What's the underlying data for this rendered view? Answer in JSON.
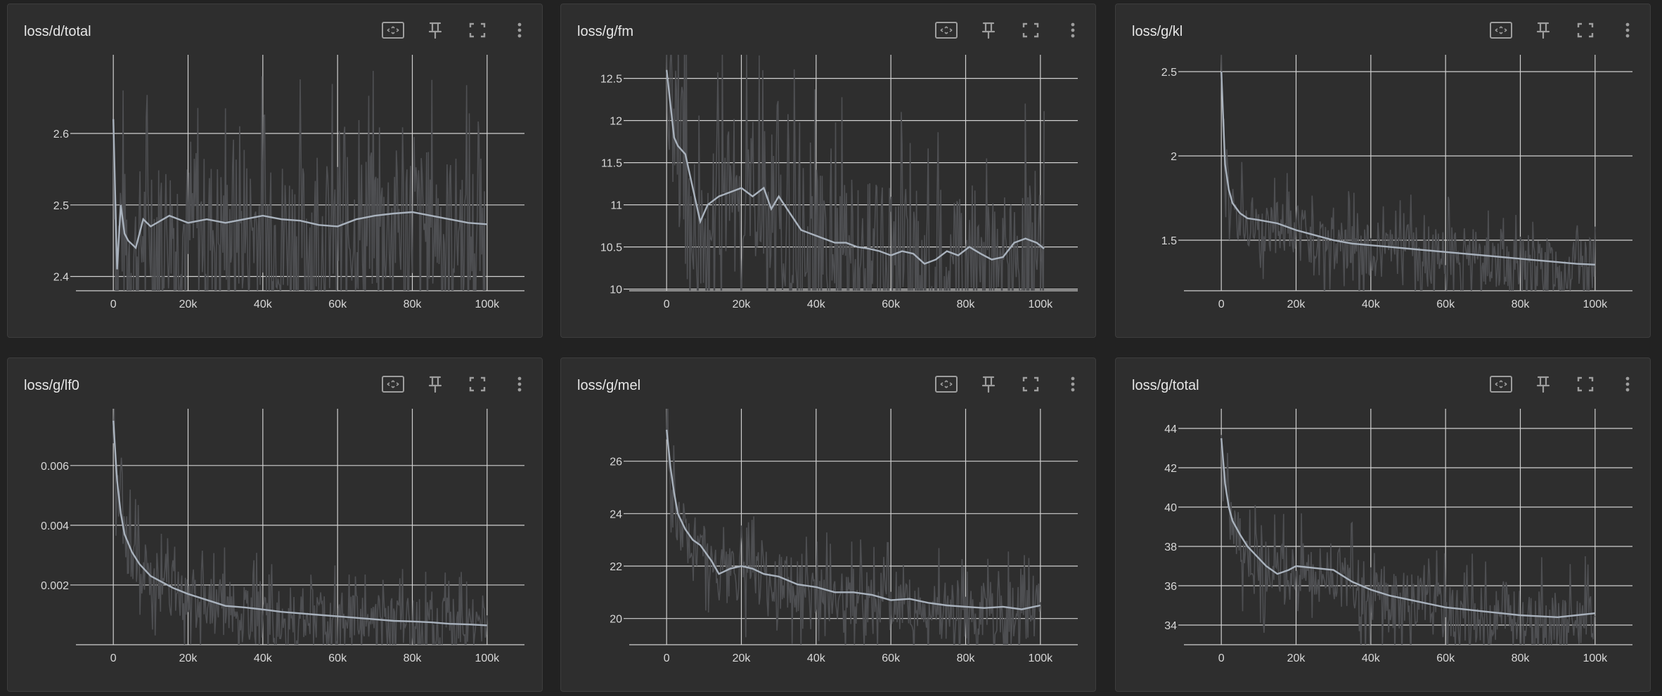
{
  "colors": {
    "background": "#222222",
    "card": "#2e2e2e",
    "grid": "#d0d0d0",
    "raw": "#4e4f52",
    "smooth": "#a9b2bd"
  },
  "toolbar_icons": [
    "fit-domain-icon",
    "pin-icon",
    "fullscreen-icon",
    "more-vert-icon"
  ],
  "cards": [
    {
      "title": "loss/d/total",
      "chart_data": {
        "type": "line",
        "title": "loss/d/total",
        "xlim": [
          -10000,
          110000
        ],
        "ylim": [
          2.38,
          2.71
        ],
        "xticks": [
          0,
          20000,
          40000,
          60000,
          80000,
          100000
        ],
        "xtick_labels": [
          "0",
          "20k",
          "40k",
          "60k",
          "80k",
          "100k"
        ],
        "yticks": [
          2.4,
          2.5,
          2.6
        ],
        "ytick_labels": [
          "2.4",
          "2.5",
          "2.6"
        ],
        "series": [
          {
            "x": [
              0,
              1000,
              2000,
              3000,
              4000,
              6000,
              8000,
              10000,
              15000,
              20000,
              25000,
              30000,
              35000,
              40000,
              45000,
              50000,
              55000,
              60000,
              65000,
              70000,
              75000,
              80000,
              85000,
              90000,
              95000,
              100000
            ],
            "y": [
              2.62,
              2.41,
              2.5,
              2.46,
              2.45,
              2.44,
              2.48,
              2.47,
              2.485,
              2.475,
              2.48,
              2.475,
              2.48,
              2.485,
              2.48,
              2.478,
              2.472,
              2.47,
              2.48,
              2.485,
              2.488,
              2.49,
              2.485,
              2.48,
              2.475,
              2.473
            ]
          }
        ]
      }
    },
    {
      "title": "loss/g/fm",
      "chart_data": {
        "type": "line",
        "title": "loss/g/fm",
        "xlim": [
          -10000,
          110000
        ],
        "ylim": [
          9.98,
          12.78
        ],
        "xticks": [
          0,
          20000,
          40000,
          60000,
          80000,
          100000
        ],
        "xtick_labels": [
          "0",
          "20k",
          "40k",
          "60k",
          "80k",
          "100k"
        ],
        "yticks": [
          10,
          10.5,
          11,
          11.5,
          12,
          12.5
        ],
        "ytick_labels": [
          "10",
          "10.5",
          "11",
          "11.5",
          "12",
          "12.5"
        ],
        "series": [
          {
            "x": [
              0,
              1000,
              2000,
              3000,
              5000,
              7000,
              9000,
              11000,
              14000,
              17000,
              20000,
              23000,
              26000,
              28000,
              30000,
              33000,
              36000,
              39000,
              42000,
              45000,
              48000,
              51000,
              54000,
              57000,
              60000,
              63000,
              66000,
              69000,
              72000,
              75000,
              78000,
              81000,
              84000,
              87000,
              90000,
              93000,
              96000,
              99000,
              101000
            ],
            "y": [
              12.6,
              12.2,
              11.8,
              11.7,
              11.6,
              11.2,
              10.8,
              11.0,
              11.1,
              11.15,
              11.2,
              11.1,
              11.2,
              10.95,
              11.1,
              10.9,
              10.7,
              10.65,
              10.6,
              10.55,
              10.55,
              10.5,
              10.48,
              10.45,
              10.4,
              10.45,
              10.42,
              10.3,
              10.35,
              10.45,
              10.4,
              10.5,
              10.42,
              10.35,
              10.38,
              10.55,
              10.6,
              10.55,
              10.48
            ]
          }
        ]
      }
    },
    {
      "title": "loss/g/kl",
      "chart_data": {
        "type": "line",
        "title": "loss/g/kl",
        "xlim": [
          -10000,
          110000
        ],
        "ylim": [
          1.2,
          2.6
        ],
        "xticks": [
          0,
          20000,
          40000,
          60000,
          80000,
          100000
        ],
        "xtick_labels": [
          "0",
          "20k",
          "40k",
          "60k",
          "80k",
          "100k"
        ],
        "yticks": [
          1.5,
          2,
          2.5
        ],
        "ytick_labels": [
          "1.5",
          "2",
          "2.5"
        ],
        "series": [
          {
            "x": [
              0,
              1000,
              2000,
              3000,
              5000,
              7000,
              10000,
              15000,
              20000,
              25000,
              30000,
              35000,
              40000,
              45000,
              50000,
              55000,
              60000,
              65000,
              70000,
              75000,
              80000,
              85000,
              90000,
              95000,
              100000
            ],
            "y": [
              2.5,
              1.95,
              1.8,
              1.72,
              1.66,
              1.63,
              1.62,
              1.6,
              1.56,
              1.53,
              1.5,
              1.48,
              1.47,
              1.46,
              1.45,
              1.44,
              1.43,
              1.42,
              1.41,
              1.4,
              1.39,
              1.38,
              1.37,
              1.36,
              1.355
            ]
          }
        ]
      }
    },
    {
      "title": "loss/g/lf0",
      "chart_data": {
        "type": "line",
        "title": "loss/g/lf0",
        "xlim": [
          -10000,
          110000
        ],
        "ylim": [
          0,
          0.0079
        ],
        "xticks": [
          0,
          20000,
          40000,
          60000,
          80000,
          100000
        ],
        "xtick_labels": [
          "0",
          "20k",
          "40k",
          "60k",
          "80k",
          "100k"
        ],
        "yticks": [
          0.002,
          0.004,
          0.006
        ],
        "ytick_labels": [
          "0.002",
          "0.004",
          "0.006"
        ],
        "series": [
          {
            "x": [
              0,
              1000,
              2000,
              3000,
              5000,
              7000,
              10000,
              13000,
              16000,
              20000,
              25000,
              30000,
              35000,
              40000,
              45000,
              50000,
              55000,
              60000,
              65000,
              70000,
              75000,
              80000,
              85000,
              90000,
              95000,
              100000
            ],
            "y": [
              0.0075,
              0.0055,
              0.0044,
              0.0037,
              0.0031,
              0.0027,
              0.0023,
              0.0021,
              0.0019,
              0.0017,
              0.0015,
              0.0013,
              0.00125,
              0.00118,
              0.0011,
              0.00105,
              0.001,
              0.00095,
              0.0009,
              0.00085,
              0.0008,
              0.00078,
              0.00075,
              0.0007,
              0.00068,
              0.00065
            ]
          }
        ]
      }
    },
    {
      "title": "loss/g/mel",
      "chart_data": {
        "type": "line",
        "title": "loss/g/mel",
        "xlim": [
          -10000,
          110000
        ],
        "ylim": [
          19,
          28
        ],
        "xticks": [
          0,
          20000,
          40000,
          60000,
          80000,
          100000
        ],
        "xtick_labels": [
          "0",
          "20k",
          "40k",
          "60k",
          "80k",
          "100k"
        ],
        "yticks": [
          20,
          22,
          24,
          26
        ],
        "ytick_labels": [
          "20",
          "22",
          "24",
          "26"
        ],
        "series": [
          {
            "x": [
              0,
              1000,
              2000,
              3000,
              5000,
              7000,
              9000,
              12000,
              14000,
              17000,
              20000,
              23000,
              26000,
              30000,
              35000,
              40000,
              45000,
              50000,
              55000,
              60000,
              65000,
              70000,
              75000,
              80000,
              85000,
              90000,
              95000,
              100000
            ],
            "y": [
              27.2,
              25.8,
              24.8,
              24.0,
              23.4,
              23.0,
              22.8,
              22.2,
              21.7,
              21.9,
              22.0,
              21.9,
              21.7,
              21.6,
              21.3,
              21.2,
              21.0,
              21.0,
              20.9,
              20.7,
              20.75,
              20.6,
              20.5,
              20.45,
              20.4,
              20.45,
              20.35,
              20.5
            ]
          }
        ]
      }
    },
    {
      "title": "loss/g/total",
      "chart_data": {
        "type": "line",
        "title": "loss/g/total",
        "xlim": [
          -10000,
          110000
        ],
        "ylim": [
          33,
          45
        ],
        "xticks": [
          0,
          20000,
          40000,
          60000,
          80000,
          100000
        ],
        "xtick_labels": [
          "0",
          "20k",
          "40k",
          "60k",
          "80k",
          "100k"
        ],
        "yticks": [
          34,
          36,
          38,
          40,
          42,
          44
        ],
        "ytick_labels": [
          "34",
          "36",
          "38",
          "40",
          "42",
          "44"
        ],
        "series": [
          {
            "x": [
              0,
              1000,
              2000,
              3000,
              5000,
              7000,
              9000,
              12000,
              15000,
              18000,
              20000,
              25000,
              30000,
              35000,
              40000,
              45000,
              50000,
              55000,
              60000,
              65000,
              70000,
              75000,
              80000,
              85000,
              90000,
              95000,
              100000
            ],
            "y": [
              43.5,
              41.2,
              40.0,
              39.3,
              38.6,
              38.0,
              37.6,
              37.0,
              36.6,
              36.8,
              37.0,
              36.9,
              36.8,
              36.2,
              35.8,
              35.5,
              35.3,
              35.1,
              34.9,
              34.8,
              34.7,
              34.6,
              34.5,
              34.45,
              34.4,
              34.5,
              34.6
            ]
          }
        ]
      }
    }
  ]
}
